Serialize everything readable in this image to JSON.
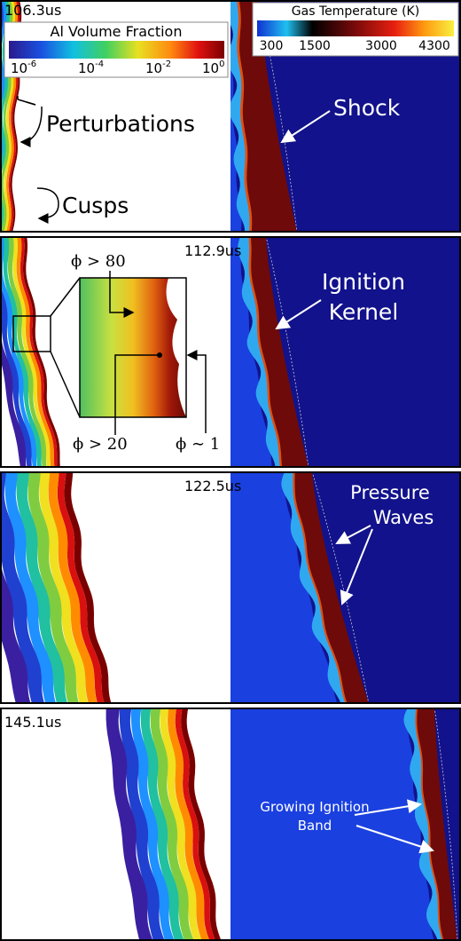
{
  "panels": [
    {
      "time": "106.3us",
      "annotations": [
        "Perturbations",
        "Cusps",
        "Shock"
      ]
    },
    {
      "time": "112.9us",
      "annotations": [
        "ϕ > 80",
        "ϕ > 20",
        "ϕ ∼ 1",
        "Ignition",
        "Kernel"
      ]
    },
    {
      "time": "122.5us",
      "annotations": [
        "Pressure",
        "Waves"
      ]
    },
    {
      "time": "145.1us",
      "annotations": [
        "Growing Ignition",
        "Band"
      ]
    }
  ],
  "colorbars": {
    "al_volume_fraction": {
      "title": "Al Volume Fraction",
      "ticks": [
        {
          "base": "10",
          "exponent": "-6"
        },
        {
          "base": "10",
          "exponent": "-4"
        },
        {
          "base": "10",
          "exponent": "-2"
        },
        {
          "base": "10",
          "exponent": "0"
        }
      ]
    },
    "gas_temperature": {
      "title": "Gas Temperature (K)",
      "ticks": [
        "300",
        "1500",
        "3000",
        "4300"
      ]
    }
  }
}
